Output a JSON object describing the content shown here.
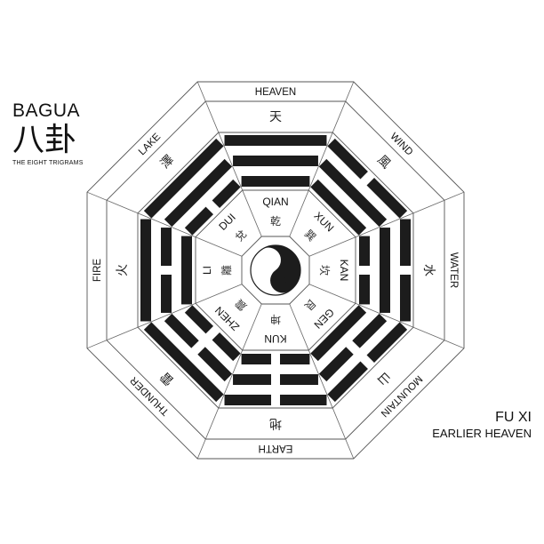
{
  "title": {
    "main": "BAGUA",
    "cjk": "八卦",
    "subtitle": "THE EIGHT TRIGRAMS"
  },
  "footer": {
    "title": "FU XI",
    "subtitle": "EARLIER HEAVEN"
  },
  "center_symbol": "yin-yang-icon",
  "trigrams": [
    {
      "position": "top",
      "element": "HEAVEN",
      "element_cjk": "天",
      "name": "QIAN",
      "name_cjk": "乾",
      "lines": [
        1,
        1,
        1
      ]
    },
    {
      "position": "top-right",
      "element": "WIND",
      "element_cjk": "風",
      "name": "XUN",
      "name_cjk": "巽",
      "lines": [
        1,
        1,
        0
      ]
    },
    {
      "position": "right",
      "element": "WATER",
      "element_cjk": "水",
      "name": "KAN",
      "name_cjk": "坎",
      "lines": [
        0,
        1,
        0
      ]
    },
    {
      "position": "bottom-right",
      "element": "MOUNTAIN",
      "element_cjk": "山",
      "name": "GEN",
      "name_cjk": "艮",
      "lines": [
        1,
        0,
        0
      ]
    },
    {
      "position": "bottom",
      "element": "EARTH",
      "element_cjk": "地",
      "name": "KUN",
      "name_cjk": "坤",
      "lines": [
        0,
        0,
        0
      ]
    },
    {
      "position": "bottom-left",
      "element": "THUNDER",
      "element_cjk": "雷",
      "name": "ZHEN",
      "name_cjk": "震",
      "lines": [
        0,
        0,
        1
      ]
    },
    {
      "position": "left",
      "element": "FIRE",
      "element_cjk": "火",
      "name": "LI",
      "name_cjk": "離",
      "lines": [
        1,
        0,
        1
      ]
    },
    {
      "position": "top-left",
      "element": "LAKE",
      "element_cjk": "澤",
      "name": "DUI",
      "name_cjk": "兌",
      "lines": [
        0,
        1,
        1
      ]
    }
  ],
  "colors": {
    "ink": "#1c1c1c",
    "line": "#555555",
    "background": "#ffffff"
  }
}
